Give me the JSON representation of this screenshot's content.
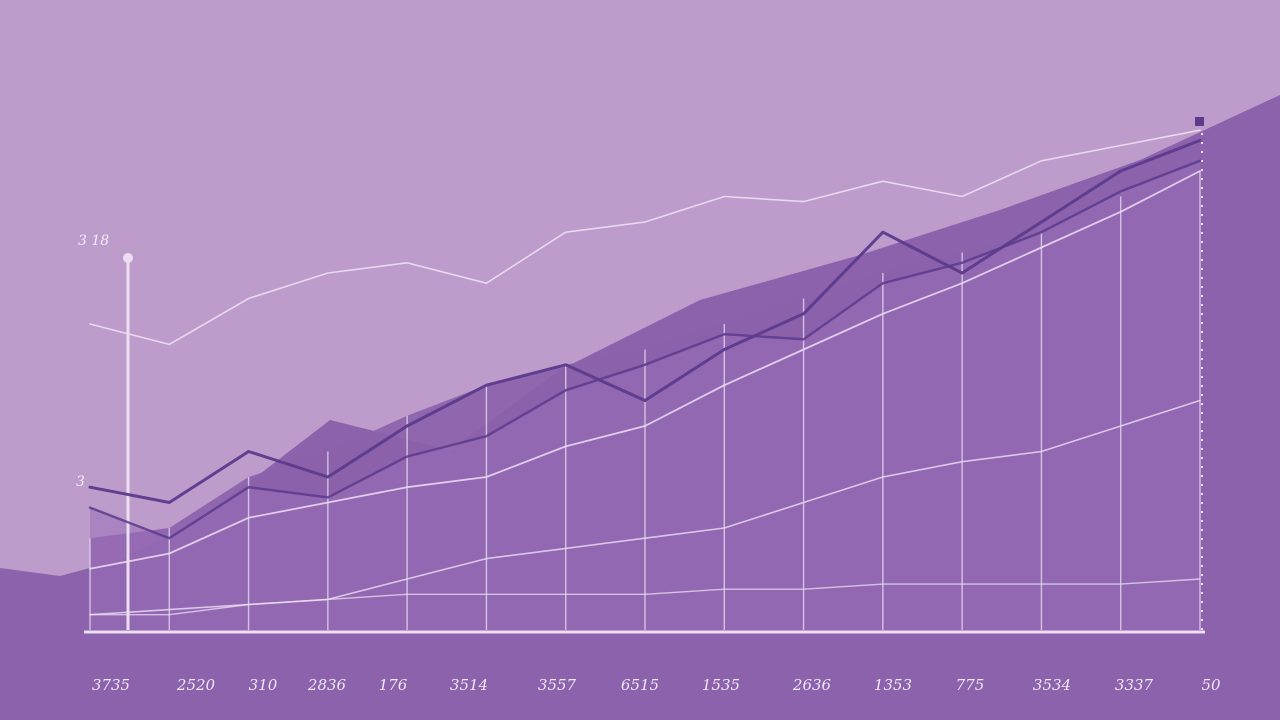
{
  "chart_data": {
    "type": "line",
    "title": "",
    "xlabel": "",
    "ylabel": "",
    "grid": true,
    "legend": "none",
    "ylim": [
      0,
      100
    ],
    "categories": [
      "3735",
      "2520",
      "310",
      "2836",
      "176",
      "3514",
      "3557",
      "6515",
      "1535",
      "2636",
      "1353",
      "775",
      "3534",
      "3337",
      "50"
    ],
    "y_tick_labels": [
      "3 18",
      "3"
    ],
    "colors": {
      "background": "#bd9bcb",
      "area_dark": "#8b62ab",
      "area_mid": "#9a70ba",
      "line_dark": "#5c3a8c",
      "line_light": "#eddff2"
    },
    "series": [
      {
        "values": [
          0,
          0,
          0,
          0,
          0,
          0,
          0,
          0,
          0,
          0,
          0,
          0,
          0,
          0,
          0
        ]
      },
      {
        "values": [
          18,
          20,
          30,
          35,
          42,
          48,
          52,
          55,
          60,
          65,
          70,
          74,
          78,
          85,
          90
        ]
      },
      {
        "values": [
          28,
          25,
          35,
          30,
          40,
          48,
          52,
          45,
          55,
          62,
          78,
          70,
          80,
          90,
          96
        ]
      },
      {
        "values": [
          24,
          18,
          28,
          26,
          34,
          38,
          47,
          52,
          58,
          57,
          68,
          72,
          78,
          86,
          92
        ]
      },
      {
        "values": [
          60,
          56,
          65,
          70,
          72,
          68,
          78,
          80,
          85,
          84,
          88,
          85,
          92,
          95,
          98
        ]
      },
      {
        "values": [
          12,
          15,
          22,
          25,
          28,
          30,
          36,
          40,
          48,
          55,
          62,
          68,
          75,
          82,
          90
        ]
      },
      {
        "values": [
          3,
          4,
          5,
          6,
          10,
          14,
          16,
          18,
          20,
          25,
          30,
          33,
          35,
          40,
          45
        ]
      },
      {
        "values": [
          3,
          3,
          5,
          6,
          7,
          7,
          7,
          7,
          8,
          8,
          9,
          9,
          9,
          9,
          10
        ]
      }
    ]
  }
}
